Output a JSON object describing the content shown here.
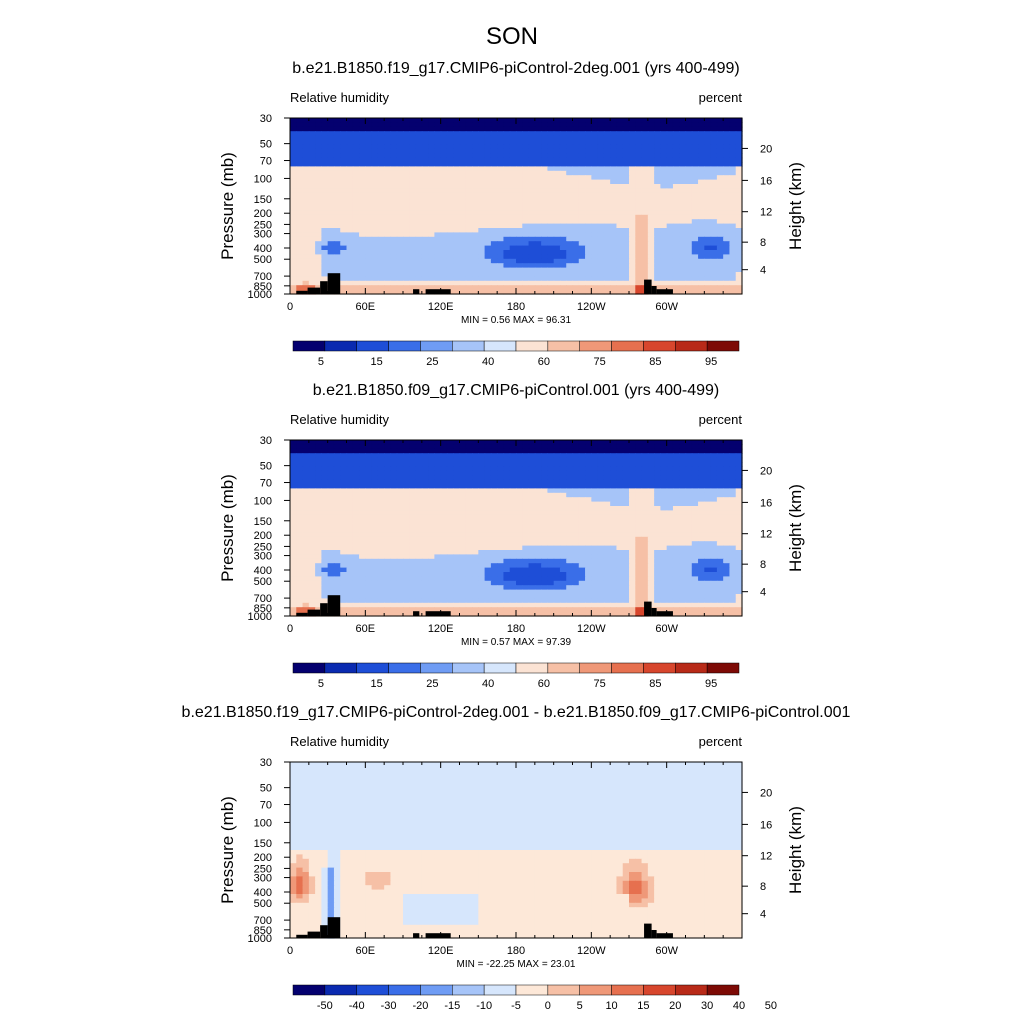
{
  "title": "SON",
  "colors": {
    "seq": [
      "#04006f",
      "#0a2ab0",
      "#1e4ed7",
      "#3a6ee8",
      "#6f9cf4",
      "#a6c4f8",
      "#d6e6fc",
      "#fbe3d4",
      "#f6c0a6",
      "#ef9878",
      "#e6704f",
      "#d7462d",
      "#b82a18",
      "#7d0a05"
    ],
    "div": [
      "#04006f",
      "#0a2ab0",
      "#1e4ed7",
      "#3a6ee8",
      "#6f9cf4",
      "#a6c4f8",
      "#d6e6fc",
      "#fde8d8",
      "#f6c0a6",
      "#ef9878",
      "#e6704f",
      "#d7462d",
      "#b82a18",
      "#7d0a05"
    ]
  },
  "chart_data": [
    {
      "type": "heatmap",
      "title": "b.e21.B1850.f19_g17.CMIP6-piControl-2deg.001 (yrs 400-499)",
      "left_string": "Relative humidity",
      "right_string": "percent",
      "ylabel": "Pressure (mb)",
      "y2label": "Height (km)",
      "xticks": [
        "0",
        "60E",
        "120E",
        "180",
        "120W",
        "60W"
      ],
      "yticks": [
        "1000",
        "850",
        "700",
        "500",
        "400",
        "300",
        "250",
        "200",
        "150",
        "100",
        "70",
        "50",
        "30"
      ],
      "y2ticks": [
        "4",
        "8",
        "12",
        "16",
        "20"
      ],
      "stats": "MIN =   0.56  MAX =  96.31",
      "colorbar_labels": [
        "5",
        "15",
        "25",
        "40",
        "60",
        "75",
        "85",
        "95"
      ],
      "min": 0.56,
      "max": 96.31,
      "field": "full"
    },
    {
      "type": "heatmap",
      "title": "b.e21.B1850.f09_g17.CMIP6-piControl.001 (yrs 400-499)",
      "left_string": "Relative humidity",
      "right_string": "percent",
      "ylabel": "Pressure (mb)",
      "y2label": "Height (km)",
      "xticks": [
        "0",
        "60E",
        "120E",
        "180",
        "120W",
        "60W"
      ],
      "yticks": [
        "1000",
        "850",
        "700",
        "500",
        "400",
        "300",
        "250",
        "200",
        "150",
        "100",
        "70",
        "50",
        "30"
      ],
      "y2ticks": [
        "4",
        "8",
        "12",
        "16",
        "20"
      ],
      "stats": "MIN =   0.57  MAX =  97.39",
      "colorbar_labels": [
        "5",
        "15",
        "25",
        "40",
        "60",
        "75",
        "85",
        "95"
      ],
      "min": 0.57,
      "max": 97.39,
      "field": "full"
    },
    {
      "type": "heatmap",
      "title": "b.e21.B1850.f19_g17.CMIP6-piControl-2deg.001 - b.e21.B1850.f09_g17.CMIP6-piControl.001",
      "left_string": "Relative humidity",
      "right_string": "percent",
      "ylabel": "Pressure (mb)",
      "y2label": "Height (km)",
      "xticks": [
        "0",
        "60E",
        "120E",
        "180",
        "120W",
        "60W"
      ],
      "yticks": [
        "1000",
        "850",
        "700",
        "500",
        "400",
        "300",
        "250",
        "200",
        "150",
        "100",
        "70",
        "50",
        "30"
      ],
      "y2ticks": [
        "4",
        "8",
        "12",
        "16",
        "20"
      ],
      "stats": "MIN = -22.25  MAX =  23.01",
      "colorbar_labels": [
        "-50",
        "-40",
        "-30",
        "-20",
        "-15",
        "-10",
        "-5",
        "0",
        "5",
        "10",
        "15",
        "20",
        "30",
        "40",
        "50"
      ],
      "min": -22.25,
      "max": 23.01,
      "field": "diff"
    }
  ]
}
